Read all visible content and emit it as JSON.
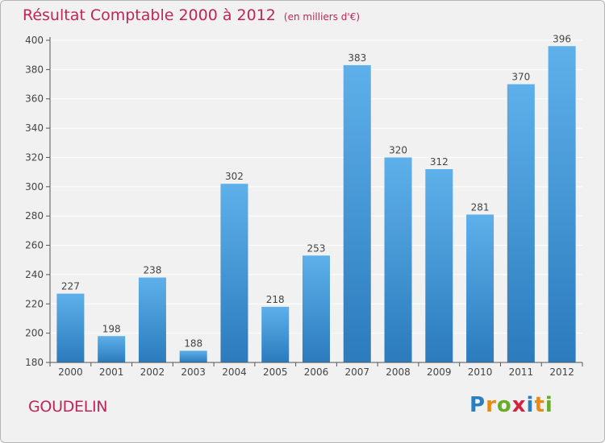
{
  "header": {
    "title": "Résultat Comptable 2000 à 2012",
    "subtitle": "(en milliers d'€)"
  },
  "footer": {
    "city": "GOUDELIN",
    "logo": {
      "letters": [
        "P",
        "r",
        "o",
        "x",
        "i",
        "t",
        "i"
      ],
      "colors": [
        "#2a7fc1",
        "#e8891a",
        "#6aab2c",
        "#d3233f",
        "#2a7fc1",
        "#e8891a",
        "#6aab2c"
      ]
    }
  },
  "chart_data": {
    "type": "bar",
    "categories": [
      "2000",
      "2001",
      "2002",
      "2003",
      "2004",
      "2005",
      "2006",
      "2007",
      "2008",
      "2009",
      "2010",
      "2011",
      "2012"
    ],
    "values": [
      227,
      198,
      238,
      188,
      302,
      218,
      253,
      383,
      320,
      312,
      281,
      370,
      396
    ],
    "ylim": [
      180,
      400
    ],
    "yticks": [
      180,
      200,
      220,
      240,
      260,
      280,
      300,
      320,
      340,
      360,
      380,
      400
    ],
    "grid": true,
    "colors": {
      "bar_top": "#5eb0ea",
      "bar_bottom": "#2b7bbd",
      "grid": "#ffffff",
      "axis": "#555555",
      "text": "#444444"
    }
  }
}
